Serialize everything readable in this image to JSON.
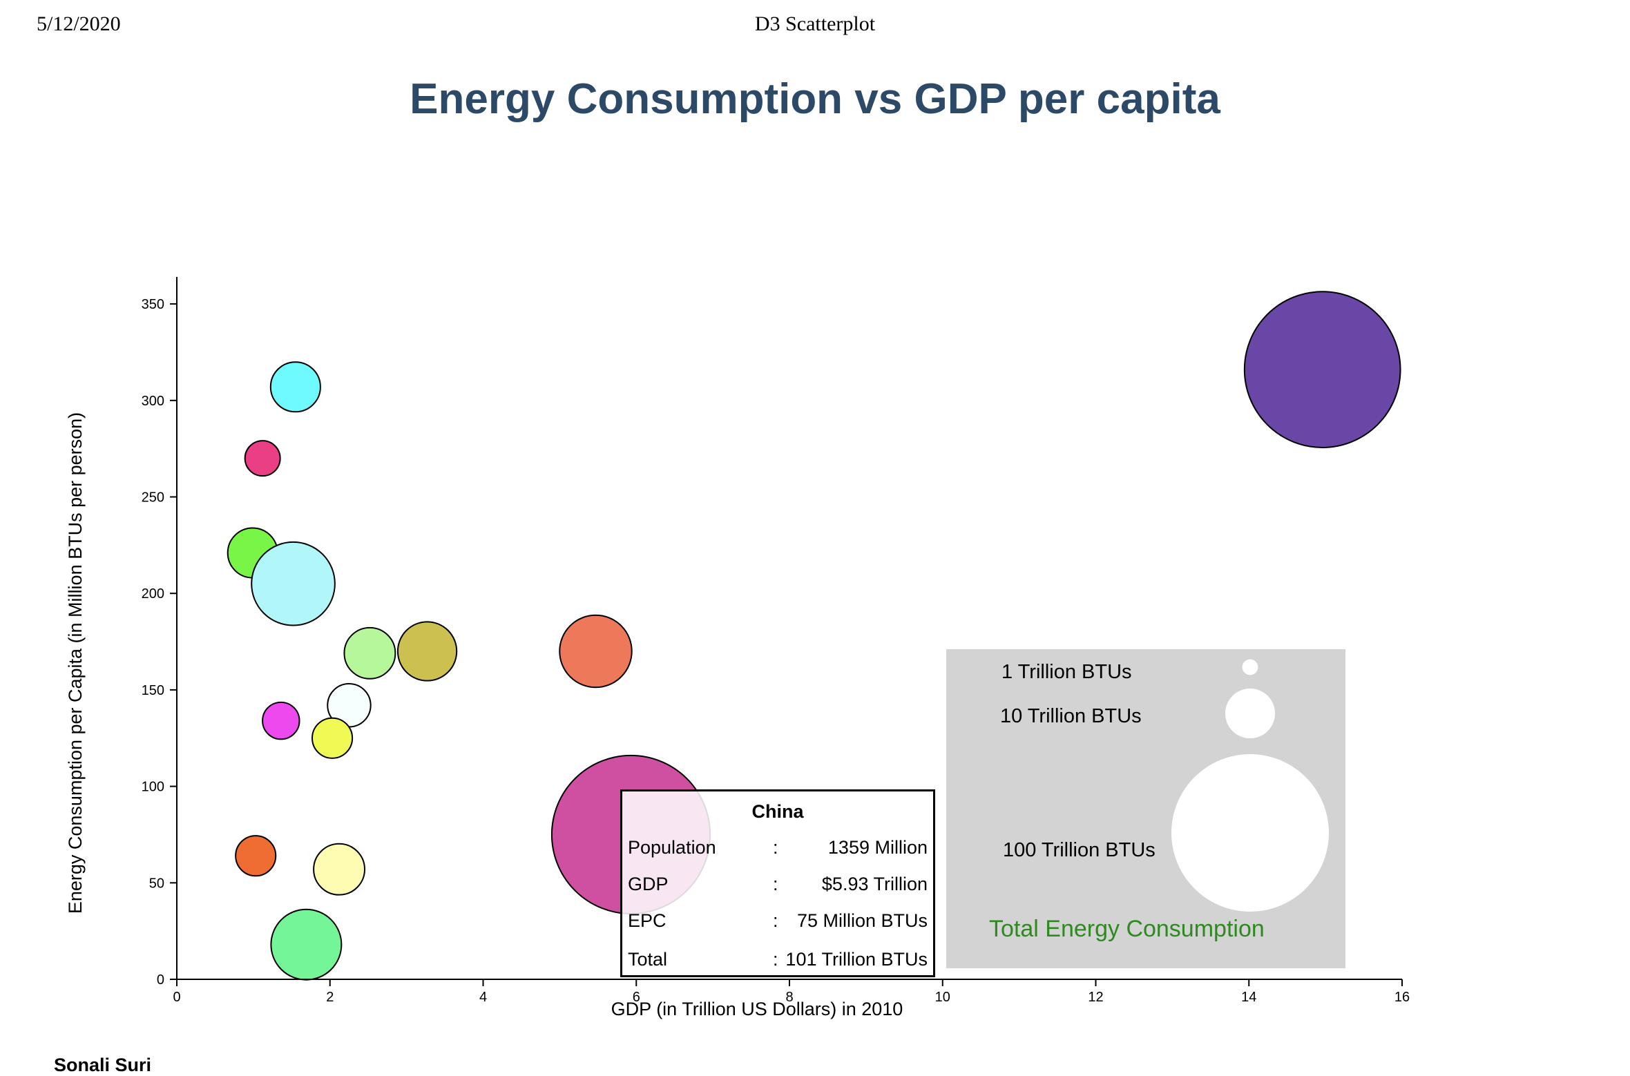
{
  "page": {
    "print_date": "5/12/2020",
    "print_title": "D3 Scatterplot",
    "author": "Sonali Suri"
  },
  "chart_data": {
    "type": "scatter",
    "title": "Energy Consumption vs GDP per capita",
    "xlabel": "GDP (in Trillion US Dollars) in 2010",
    "ylabel": "Energy Consumption per Capita (in Million BTUs per person)",
    "xlim": [
      0,
      16
    ],
    "ylim": [
      0,
      350
    ],
    "xticks": [
      0,
      2,
      4,
      6,
      8,
      10,
      12,
      14,
      16
    ],
    "yticks": [
      0,
      50,
      100,
      150,
      200,
      250,
      300,
      350
    ],
    "grid": false,
    "size_encoding": "Total Energy Consumption",
    "points": [
      {
        "x": 14.96,
        "y": 316,
        "total": 98,
        "color": "#6a47a6"
      },
      {
        "x": 1.55,
        "y": 307,
        "total": 10,
        "color": "#6ffaff"
      },
      {
        "x": 1.12,
        "y": 270,
        "total": 5,
        "color": "#ea3e85"
      },
      {
        "x": 0.99,
        "y": 221,
        "total": 10,
        "color": "#79f547"
      },
      {
        "x": 1.52,
        "y": 205,
        "total": 28,
        "color": "#b1f7f9"
      },
      {
        "x": 2.52,
        "y": 169,
        "total": 10.5,
        "color": "#b6f79c"
      },
      {
        "x": 3.27,
        "y": 170,
        "total": 14,
        "color": "#cbc050"
      },
      {
        "x": 5.47,
        "y": 170,
        "total": 21,
        "color": "#ee795a"
      },
      {
        "x": 2.25,
        "y": 142,
        "total": 7.5,
        "color": "#f6fffd"
      },
      {
        "x": 1.36,
        "y": 134,
        "total": 5.5,
        "color": "#ee49ef"
      },
      {
        "x": 2.03,
        "y": 125,
        "total": 6.5,
        "color": "#f1fa54"
      },
      {
        "x": 5.93,
        "y": 75,
        "total": 101,
        "color": "#cf4fa0"
      },
      {
        "x": 1.03,
        "y": 64,
        "total": 6.5,
        "color": "#ef6c33"
      },
      {
        "x": 2.12,
        "y": 57,
        "total": 10.5,
        "color": "#fefbb3"
      },
      {
        "x": 1.69,
        "y": 18,
        "total": 20,
        "color": "#74f597"
      }
    ],
    "legend": {
      "title": "Total Energy Consumption",
      "items": [
        {
          "label": "1 Trillion BTUs",
          "value": 1
        },
        {
          "label": "10 Trillion BTUs",
          "value": 10
        },
        {
          "label": "100 Trillion BTUs",
          "value": 100
        }
      ],
      "placement": "bottom-right",
      "background": "#d3d3d3"
    },
    "tooltip": {
      "name": "China",
      "rows": [
        {
          "key": "Population",
          "value": "1359 Million"
        },
        {
          "key": "GDP",
          "value": "$5.93 Trillion"
        },
        {
          "key": "EPC",
          "value": "75 Million BTUs"
        },
        {
          "key": "Total",
          "value": "101 Trillion BTUs"
        }
      ]
    }
  }
}
